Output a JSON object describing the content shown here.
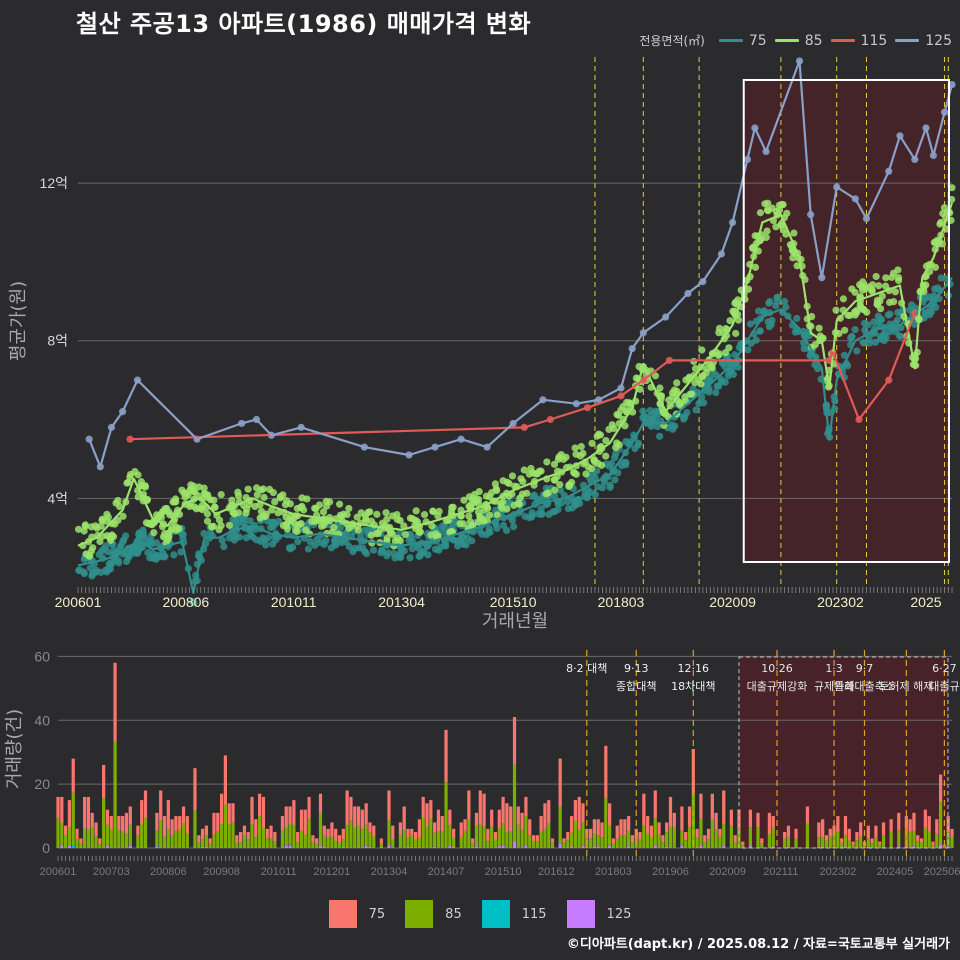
{
  "title": "철산 주공13 아파트(1986) 매매가격 변화",
  "legend": {
    "title": "전용면적(㎡)",
    "items": [
      {
        "label": "75",
        "color": "#2f8f8c",
        "bar_color": "#f8766d"
      },
      {
        "label": "85",
        "color": "#9be36a",
        "bar_color": "#7cae00"
      },
      {
        "label": "115",
        "color": "#e05a57",
        "bar_color": "#00bfc4"
      },
      {
        "label": "125",
        "color": "#8aa0c8",
        "bar_color": "#c77cff"
      }
    ]
  },
  "caption": "©디아파트(dapt.kr) / 2025.08.12 / 자료=국토교통부 실거래가",
  "chart_data": [
    {
      "type": "line",
      "ylabel": "평균가(원)",
      "xlabel": "거래년월",
      "yticks": [
        {
          "value": 4,
          "label": "4억"
        },
        {
          "value": 8,
          "label": "8억"
        },
        {
          "value": 12,
          "label": "12억"
        }
      ],
      "ylim": [
        1.8,
        15.2
      ],
      "xlim": [
        "2006-01",
        "2025-08"
      ],
      "xticks": [
        "200601",
        "200806",
        "201011",
        "201304",
        "201510",
        "201803",
        "202009",
        "202302",
        "2025"
      ],
      "highlight_period": [
        "2020-12",
        "2025-08"
      ],
      "policy_lines": [
        "2017-08",
        "2018-09",
        "2019-12",
        "2021-10",
        "2023-01",
        "2023-09",
        "2025-06",
        "2025-07"
      ],
      "units": "억원",
      "series": [
        {
          "name": "75",
          "points": [
            [
              "2006-01",
              2.3
            ],
            [
              "2006-06",
              2.4
            ],
            [
              "2006-10",
              2.5
            ],
            [
              "2006-12",
              2.6
            ],
            [
              "2007-03",
              2.8
            ],
            [
              "2007-06",
              2.9
            ],
            [
              "2007-09",
              2.7
            ],
            [
              "2008-01",
              2.8
            ],
            [
              "2008-05",
              2.9
            ],
            [
              "2008-08",
              1.6
            ],
            [
              "2008-11",
              3.0
            ],
            [
              "2009-03",
              3.0
            ],
            [
              "2009-07",
              3.2
            ],
            [
              "2009-12",
              3.3
            ],
            [
              "2010-05",
              3.1
            ],
            [
              "2010-11",
              3.0
            ],
            [
              "2011-06",
              3.1
            ],
            [
              "2012-01",
              3.0
            ],
            [
              "2012-08",
              2.9
            ],
            [
              "2013-04",
              2.8
            ],
            [
              "2013-12",
              2.9
            ],
            [
              "2014-07",
              3.1
            ],
            [
              "2015-02",
              3.3
            ],
            [
              "2015-10",
              3.6
            ],
            [
              "2016-06",
              3.9
            ],
            [
              "2016-12",
              4.0
            ],
            [
              "2017-06",
              4.3
            ],
            [
              "2017-12",
              4.6
            ],
            [
              "2018-06",
              5.4
            ],
            [
              "2018-09",
              5.9
            ],
            [
              "2019-03",
              5.9
            ],
            [
              "2019-09",
              6.4
            ],
            [
              "2020-03",
              6.9
            ],
            [
              "2020-09",
              7.4
            ],
            [
              "2021-01",
              8.0
            ],
            [
              "2021-05",
              8.6
            ],
            [
              "2021-10",
              8.8
            ],
            [
              "2022-03",
              8.3
            ],
            [
              "2022-06",
              7.8
            ],
            [
              "2022-09",
              7.3
            ],
            [
              "2022-11",
              5.5
            ],
            [
              "2023-01",
              7.0
            ],
            [
              "2023-06",
              8.0
            ],
            [
              "2023-12",
              8.3
            ],
            [
              "2024-06",
              8.4
            ],
            [
              "2024-12",
              8.8
            ],
            [
              "2025-03",
              9.0
            ],
            [
              "2025-08",
              9.6
            ]
          ]
        },
        {
          "name": "85",
          "points": [
            [
              "2006-01",
              2.8
            ],
            [
              "2006-06",
              3.0
            ],
            [
              "2006-10",
              3.4
            ],
            [
              "2007-01",
              3.7
            ],
            [
              "2007-04",
              4.5
            ],
            [
              "2007-09",
              3.5
            ],
            [
              "2008-01",
              3.3
            ],
            [
              "2008-06",
              3.9
            ],
            [
              "2008-10",
              4.0
            ],
            [
              "2009-02",
              3.6
            ],
            [
              "2009-07",
              3.8
            ],
            [
              "2009-12",
              4.0
            ],
            [
              "2010-05",
              3.8
            ],
            [
              "2010-11",
              3.6
            ],
            [
              "2011-06",
              3.5
            ],
            [
              "2012-01",
              3.4
            ],
            [
              "2012-08",
              3.3
            ],
            [
              "2013-04",
              3.2
            ],
            [
              "2013-12",
              3.4
            ],
            [
              "2014-07",
              3.6
            ],
            [
              "2015-02",
              3.8
            ],
            [
              "2015-10",
              4.2
            ],
            [
              "2016-06",
              4.5
            ],
            [
              "2016-12",
              4.7
            ],
            [
              "2017-06",
              5.0
            ],
            [
              "2017-12",
              5.4
            ],
            [
              "2018-06",
              6.3
            ],
            [
              "2018-09",
              7.4
            ],
            [
              "2019-03",
              6.2
            ],
            [
              "2019-09",
              6.9
            ],
            [
              "2020-03",
              7.6
            ],
            [
              "2020-09",
              8.4
            ],
            [
              "2021-01",
              9.5
            ],
            [
              "2021-05",
              11.0
            ],
            [
              "2021-10",
              11.2
            ],
            [
              "2022-03",
              10.1
            ],
            [
              "2022-06",
              8.2
            ],
            [
              "2022-09",
              8.0
            ],
            [
              "2022-11",
              6.8
            ],
            [
              "2023-01",
              8.5
            ],
            [
              "2023-06",
              9.0
            ],
            [
              "2023-12",
              9.2
            ],
            [
              "2024-06",
              9.4
            ],
            [
              "2024-10",
              7.3
            ],
            [
              "2024-12",
              9.6
            ],
            [
              "2025-03",
              10.1
            ],
            [
              "2025-08",
              11.5
            ]
          ]
        },
        {
          "name": "115",
          "points": [
            [
              "2007-03",
              5.5
            ],
            [
              "2016-01",
              5.8
            ],
            [
              "2016-08",
              6.0
            ],
            [
              "2017-06",
              6.3
            ],
            [
              "2018-03",
              6.6
            ],
            [
              "2018-09",
              7.0
            ],
            [
              "2019-04",
              7.5
            ],
            [
              "2022-11",
              7.5
            ],
            [
              "2022-12",
              7.7
            ],
            [
              "2023-07",
              6.0
            ],
            [
              "2024-03",
              7.0
            ],
            [
              "2024-10",
              8.7
            ]
          ]
        },
        {
          "name": "125",
          "points": [
            [
              "2006-04",
              5.5
            ],
            [
              "2006-07",
              4.8
            ],
            [
              "2006-10",
              5.8
            ],
            [
              "2007-01",
              6.2
            ],
            [
              "2007-05",
              7.0
            ],
            [
              "2008-09",
              5.5
            ],
            [
              "2009-09",
              5.9
            ],
            [
              "2010-01",
              6.0
            ],
            [
              "2010-05",
              5.6
            ],
            [
              "2011-01",
              5.8
            ],
            [
              "2012-06",
              5.3
            ],
            [
              "2013-06",
              5.1
            ],
            [
              "2014-01",
              5.3
            ],
            [
              "2014-08",
              5.5
            ],
            [
              "2015-03",
              5.3
            ],
            [
              "2015-10",
              5.9
            ],
            [
              "2016-06",
              6.5
            ],
            [
              "2017-03",
              6.4
            ],
            [
              "2017-09",
              6.5
            ],
            [
              "2018-03",
              6.8
            ],
            [
              "2018-06",
              7.8
            ],
            [
              "2018-09",
              8.2
            ],
            [
              "2019-03",
              8.6
            ],
            [
              "2019-09",
              9.2
            ],
            [
              "2020-01",
              9.5
            ],
            [
              "2020-06",
              10.2
            ],
            [
              "2020-09",
              11.0
            ],
            [
              "2021-01",
              12.6
            ],
            [
              "2021-03",
              13.4
            ],
            [
              "2021-06",
              12.8
            ],
            [
              "2022-03",
              15.1
            ],
            [
              "2022-06",
              11.2
            ],
            [
              "2022-09",
              9.6
            ],
            [
              "2023-01",
              11.9
            ],
            [
              "2023-06",
              11.6
            ],
            [
              "2023-09",
              11.1
            ],
            [
              "2024-03",
              12.3
            ],
            [
              "2024-06",
              13.2
            ],
            [
              "2024-10",
              12.6
            ],
            [
              "2025-01",
              13.4
            ],
            [
              "2025-03",
              12.7
            ],
            [
              "2025-06",
              13.8
            ],
            [
              "2025-08",
              14.5
            ]
          ]
        }
      ]
    },
    {
      "type": "bar",
      "stacked": true,
      "ylabel": "거래량(건)",
      "yticks": [
        0,
        20,
        40,
        60
      ],
      "ylim": [
        0,
        62
      ],
      "xticks": [
        "200601",
        "200703",
        "200806",
        "200908",
        "201011",
        "201201",
        "201304",
        "201407",
        "201510",
        "201612",
        "201803",
        "201906",
        "202009",
        "202111",
        "202302",
        "202405",
        "202506"
      ],
      "highlight_period": [
        "2020-12",
        "2025-08"
      ],
      "annotations": [
        {
          "date": "2017-08",
          "text": "8·2 대책",
          "line2": ""
        },
        {
          "date": "2018-09",
          "text": "9·13",
          "line2": "종합대책"
        },
        {
          "date": "2019-12",
          "text": "12·16",
          "line2": "18차대책"
        },
        {
          "date": "2021-10",
          "text": "10·26",
          "line2": "대출규제강화"
        },
        {
          "date": "2023-01",
          "text": "1·3",
          "line2": "규제완화"
        },
        {
          "date": "2023-09",
          "text": "9·7",
          "line2": "특례대출축소"
        },
        {
          "date": "2024-08",
          "text": "",
          "line2": "토허제 해제"
        },
        {
          "date": "2025-06",
          "text": "6·27",
          "line2": "대출규"
        }
      ],
      "peaks": [
        {
          "date": "2006-05",
          "value": 28
        },
        {
          "date": "2007-01",
          "value": 26
        },
        {
          "date": "2007-04",
          "value": 58
        },
        {
          "date": "2009-01",
          "value": 25
        },
        {
          "date": "2009-09",
          "value": 29
        },
        {
          "date": "2014-07",
          "value": 37
        },
        {
          "date": "2016-01",
          "value": 41
        },
        {
          "date": "2017-01",
          "value": 28
        },
        {
          "date": "2018-01",
          "value": 32
        },
        {
          "date": "2019-12",
          "value": 31
        },
        {
          "date": "2025-05",
          "value": 23
        }
      ]
    }
  ]
}
